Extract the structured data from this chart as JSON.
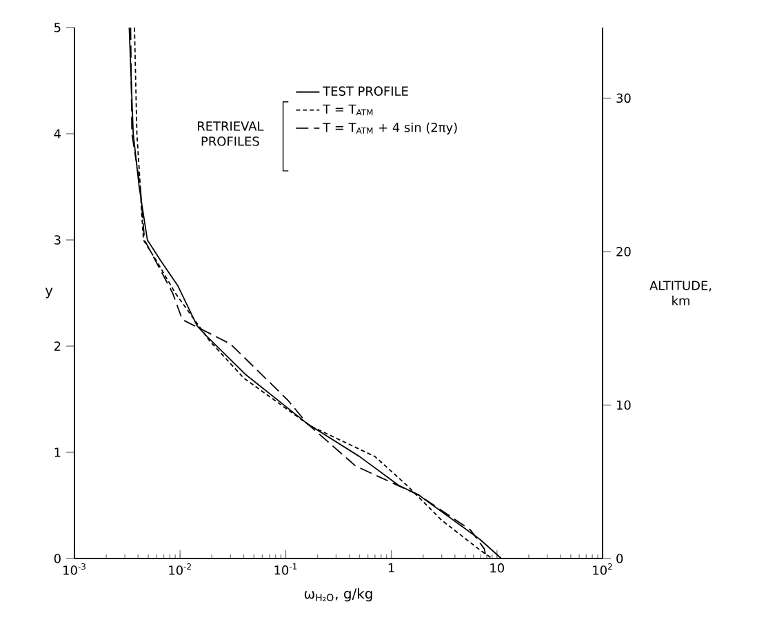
{
  "chart_data": {
    "type": "line",
    "xlabel": "ω$_{H₂O}$, g/kg",
    "ylabel": "y",
    "y2label": "ALTITUDE, km",
    "log": "x",
    "xlim": [
      0.001,
      100
    ],
    "ylim": [
      0,
      5
    ],
    "xticks": [
      {
        "value": 0.001,
        "label": "10$^{-3}$"
      },
      {
        "value": 0.01,
        "label": "10$^{-2}$"
      },
      {
        "value": 0.1,
        "label": "10$^{-1}$"
      },
      1,
      10,
      {
        "value": 100,
        "label": "10$^{2}$"
      }
    ],
    "yticks": [
      0,
      1,
      2,
      3,
      4,
      5
    ],
    "y2lim": [
      0,
      34.6
    ],
    "y2ticks": [
      0,
      10,
      20,
      30
    ],
    "legend": "top",
    "grid": false,
    "marker": "none",
    "annotations": [
      "RETRIEVAL PROFILES"
    ],
    "series": [
      {
        "name": "TEST PROFILE",
        "color": "#000000",
        "line_style": "solid",
        "x": [
          0.0033,
          0.0036,
          0.0041,
          0.0044,
          0.0049,
          0.0066,
          0.0095,
          0.0145,
          0.018,
          0.042,
          0.16,
          0.5,
          1.17,
          1.8,
          6.9,
          11
        ],
        "values": [
          5,
          4,
          3.5,
          3.3,
          3,
          2.8,
          2.57,
          2.19,
          2.09,
          1.73,
          1.27,
          0.96,
          0.69,
          0.6,
          0.18,
          0
        ]
      },
      {
        "name": "T = T$_{ATM}$",
        "color": "#000000",
        "line_style": "dotted",
        "x": [
          0.0037,
          0.0039,
          0.0042,
          0.0043,
          0.0045,
          0.006,
          0.009,
          0.019,
          0.04,
          0.17,
          0.7,
          1.4,
          3.0,
          6.9,
          9
        ],
        "values": [
          5,
          4,
          3.5,
          3.3,
          3,
          2.8,
          2.5,
          2.05,
          1.7,
          1.25,
          0.96,
          0.69,
          0.36,
          0.08,
          0
        ]
      },
      {
        "name": "T = T$_{ATM}$ + 4 sin (2πy)",
        "color": "#000000",
        "line_style": "dashed",
        "x": [
          0.0034,
          0.0035,
          0.0042,
          0.0046,
          0.0085,
          0.0105,
          0.03,
          0.105,
          0.16,
          0.46,
          1.8,
          5.6,
          7.6,
          7.9
        ],
        "values": [
          5,
          4,
          3.5,
          3,
          2.5,
          2.25,
          2.02,
          1.49,
          1.27,
          0.87,
          0.6,
          0.27,
          0.09,
          0
        ]
      }
    ]
  }
}
